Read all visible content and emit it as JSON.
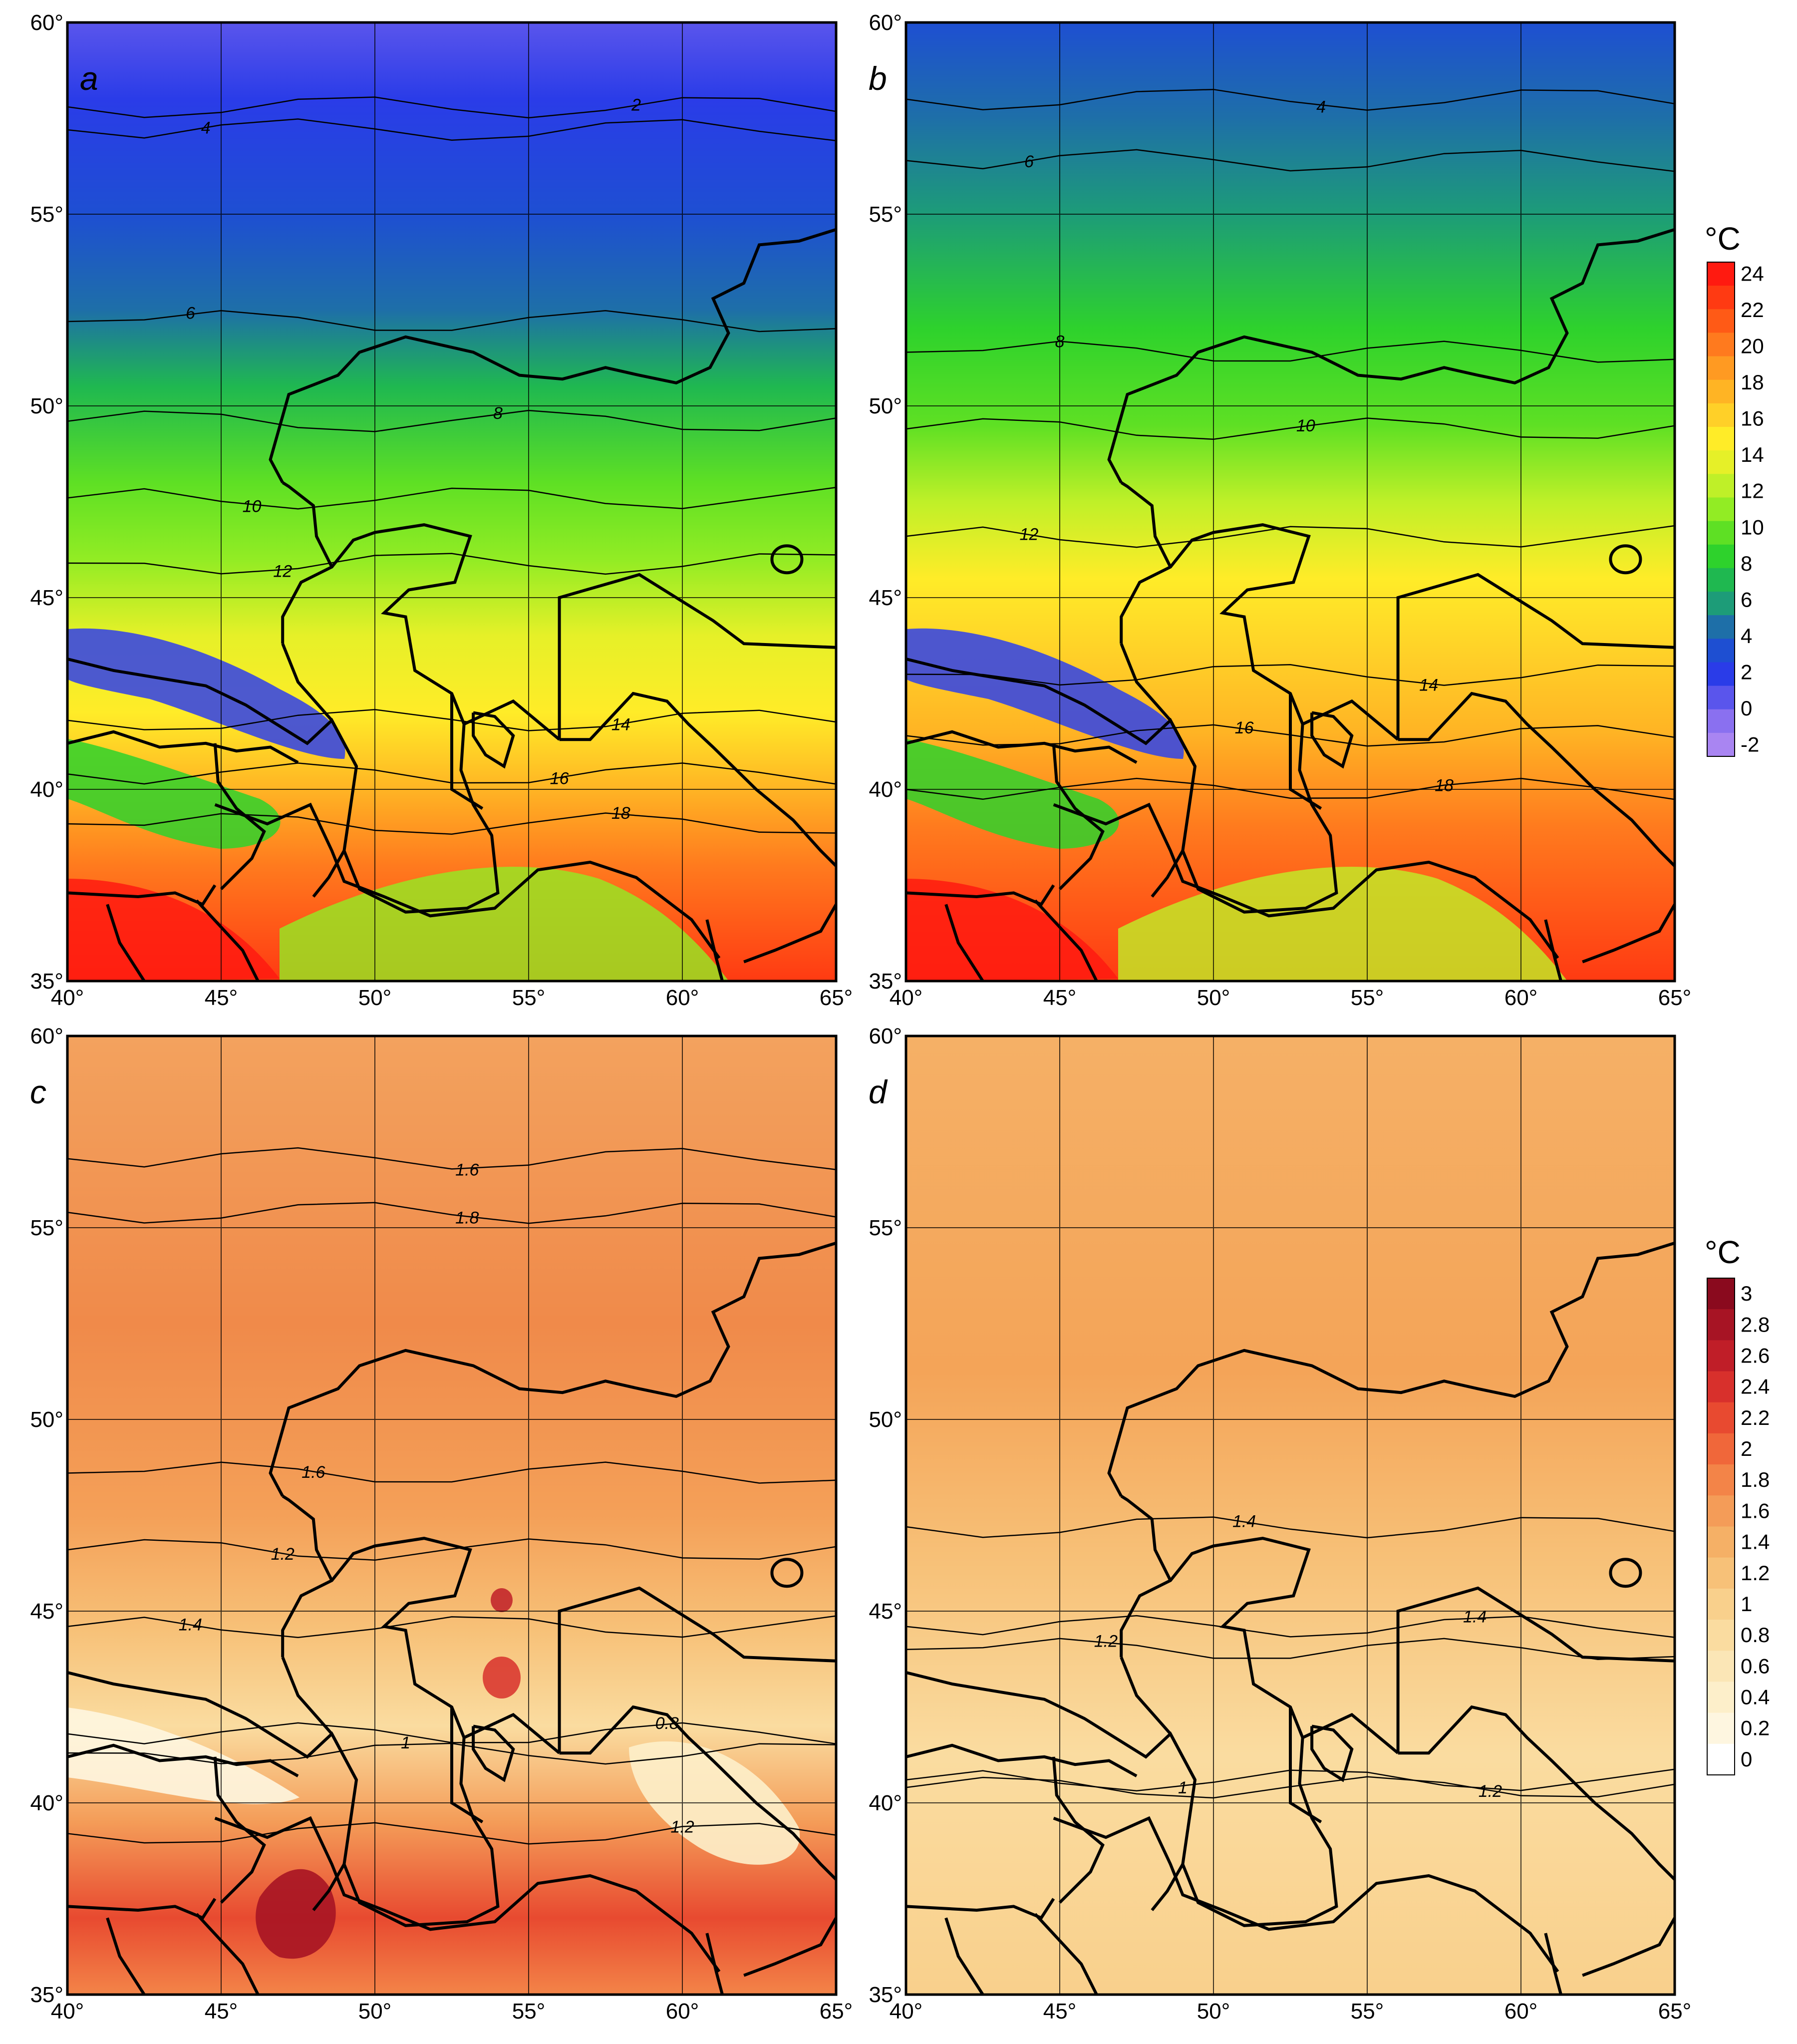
{
  "figure": {
    "panels": [
      {
        "id": "a",
        "label": "a",
        "scale": "temp",
        "base_color": "#2f9de0",
        "contours": [
          {
            "lat": 57.8,
            "value": "2",
            "lbl_lon": 58.5
          },
          {
            "lat": 57.2,
            "value": "4",
            "lbl_lon": 44.5
          },
          {
            "lat": 52.2,
            "value": "6",
            "lbl_lon": 44.0
          },
          {
            "lat": 49.6,
            "value": "8",
            "lbl_lon": 54.0
          },
          {
            "lat": 47.6,
            "value": "10",
            "lbl_lon": 46.0
          },
          {
            "lat": 45.9,
            "value": "12",
            "lbl_lon": 47.0
          },
          {
            "lat": 41.8,
            "value": "14",
            "lbl_lon": 58.0
          },
          {
            "lat": 40.4,
            "value": "16",
            "lbl_lon": 56.0
          },
          {
            "lat": 39.1,
            "value": "18",
            "lbl_lon": 58.0
          }
        ]
      },
      {
        "id": "b",
        "label": "b",
        "scale": "temp",
        "base_color": "#3cc4b6",
        "contours": [
          {
            "lat": 58.0,
            "value": "4",
            "lbl_lon": 53.5
          },
          {
            "lat": 56.4,
            "value": "6",
            "lbl_lon": 44.0
          },
          {
            "lat": 51.4,
            "value": "8",
            "lbl_lon": 45.0
          },
          {
            "lat": 49.4,
            "value": "10",
            "lbl_lon": 53.0
          },
          {
            "lat": 46.6,
            "value": "12",
            "lbl_lon": 44.0
          },
          {
            "lat": 43.0,
            "value": "14",
            "lbl_lon": 57.0
          },
          {
            "lat": 41.4,
            "value": "16",
            "lbl_lon": 51.0
          },
          {
            "lat": 40.0,
            "value": "18",
            "lbl_lon": 57.5
          }
        ]
      },
      {
        "id": "c",
        "label": "c",
        "scale": "diff",
        "base_color": "#f2b46e",
        "contours": [
          {
            "lat": 55.4,
            "value": "1.8",
            "lbl_lon": 53.0
          },
          {
            "lat": 56.8,
            "value": "1.6",
            "lbl_lon": 53.0
          },
          {
            "lat": 48.6,
            "value": "1.6",
            "lbl_lon": 48.0
          },
          {
            "lat": 46.6,
            "value": "1.2",
            "lbl_lon": 47.0
          },
          {
            "lat": 44.6,
            "value": "1.4",
            "lbl_lon": 44.0
          },
          {
            "lat": 41.3,
            "value": "1",
            "lbl_lon": 51.0
          },
          {
            "lat": 39.2,
            "value": "1.2",
            "lbl_lon": 60.0
          },
          {
            "lat": 41.8,
            "value": "0.8",
            "lbl_lon": 59.5
          }
        ]
      },
      {
        "id": "d",
        "label": "d",
        "scale": "diff",
        "base_color": "#f5c27c",
        "contours": [
          {
            "lat": 47.2,
            "value": "1.4",
            "lbl_lon": 51.0
          },
          {
            "lat": 44.6,
            "value": "1.4",
            "lbl_lon": 58.5
          },
          {
            "lat": 44.0,
            "value": "1.2",
            "lbl_lon": 46.5
          },
          {
            "lat": 40.4,
            "value": "1.2",
            "lbl_lon": 59.0
          },
          {
            "lat": 40.6,
            "value": "1",
            "lbl_lon": 49.0
          }
        ]
      }
    ],
    "lon_ticks": [
      "40°",
      "45°",
      "50°",
      "55°",
      "60°",
      "65°"
    ],
    "lat_ticks": [
      "60°",
      "55°",
      "50°",
      "45°",
      "40°",
      "35°"
    ],
    "colorbar_temp": {
      "unit": "°C",
      "labels": [
        "24",
        "22",
        "20",
        "18",
        "16",
        "14",
        "12",
        "10",
        "8",
        "6",
        "4",
        "2",
        "0",
        "-2"
      ],
      "colors": [
        "#ff1a10",
        "#ff3a12",
        "#ff5a16",
        "#ff7a1e",
        "#ff9a22",
        "#ffb424",
        "#ffd028",
        "#ffec28",
        "#e6f028",
        "#bff028",
        "#92ec24",
        "#5ee024",
        "#2ed22c",
        "#1fb850",
        "#1d9c78",
        "#1e6fa8",
        "#1e4fd2",
        "#2a3ce8",
        "#5a55ec",
        "#8a70f0",
        "#a985f2"
      ]
    },
    "colorbar_diff": {
      "unit": "°C",
      "labels": [
        "3",
        "2.8",
        "2.6",
        "2.4",
        "2.2",
        "2",
        "1.8",
        "1.6",
        "1.4",
        "1.2",
        "1",
        "0.8",
        "0.6",
        "0.4",
        "0.2",
        "0"
      ],
      "colors": [
        "#8a0a1e",
        "#a71424",
        "#c01e28",
        "#d8302c",
        "#e84a30",
        "#f0673a",
        "#f38448",
        "#f49c58",
        "#f5b066",
        "#f7c178",
        "#f9d08c",
        "#fadca0",
        "#fbe6b6",
        "#fdefca",
        "#fef6e0",
        "#ffffff"
      ]
    }
  }
}
